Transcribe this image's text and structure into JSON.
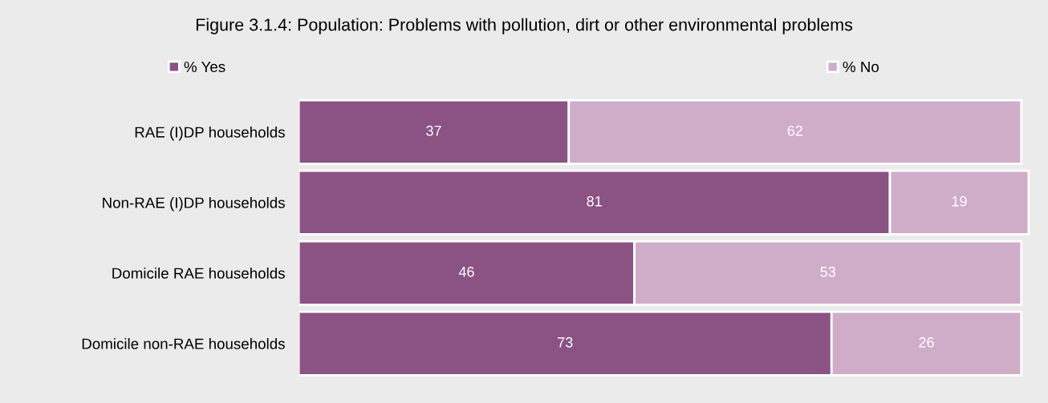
{
  "chart_data": {
    "type": "bar",
    "orientation": "horizontal",
    "stacked": true,
    "title": "Figure 3.1.4: Population: Problems with pollution, dirt or other environmental problems",
    "categories": [
      "RAE (I)DP households",
      "Non-RAE (I)DP households",
      "Domicile RAE households",
      "Domicile non-RAE households"
    ],
    "series": [
      {
        "name": "% Yes",
        "color": "#8a5384",
        "values": [
          37,
          81,
          46,
          73
        ]
      },
      {
        "name": "% No",
        "color": "#cfadc9",
        "values": [
          62,
          19,
          53,
          26
        ]
      }
    ],
    "data_labels": true,
    "legend": "top",
    "grid": false
  }
}
